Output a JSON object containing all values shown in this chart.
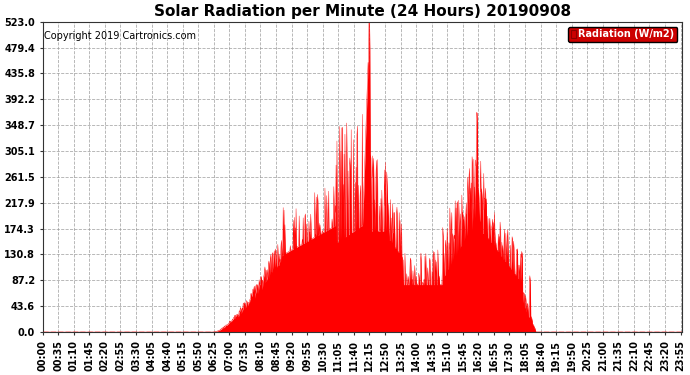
{
  "title": "Solar Radiation per Minute (24 Hours) 20190908",
  "copyright": "Copyright 2019 Cartronics.com",
  "legend_label": "Radiation (W/m2)",
  "yticks": [
    0.0,
    43.6,
    87.2,
    130.8,
    174.3,
    217.9,
    261.5,
    305.1,
    348.7,
    392.2,
    435.8,
    479.4,
    523.0
  ],
  "ymax": 523.0,
  "fill_color": "#FF0000",
  "line_color": "#FF0000",
  "background_color": "#FFFFFF",
  "grid_color": "#999999",
  "dashed_line_color": "#FF0000",
  "title_fontsize": 11,
  "copyright_fontsize": 7,
  "tick_fontsize": 7,
  "legend_bg": "#CC0000",
  "legend_text_color": "#FFFFFF",
  "sunrise_min": 385,
  "sunset_min": 1120,
  "peak1_min": 735,
  "peak1_val": 523.0,
  "peak2_min": 980,
  "peak2_val": 370.0
}
